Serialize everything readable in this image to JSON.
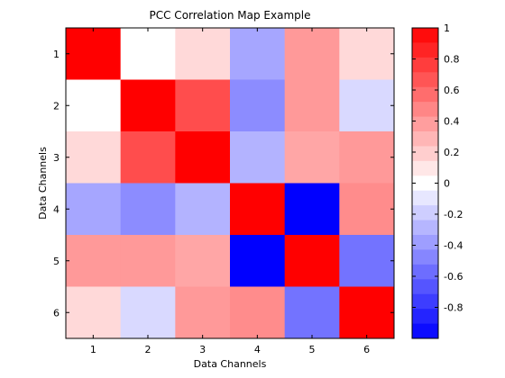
{
  "chart_data": {
    "type": "heatmap",
    "title": "PCC Correlation Map Example",
    "xlabel": "Data Channels",
    "ylabel": "Data Channels",
    "x_categories": [
      "1",
      "2",
      "3",
      "4",
      "5",
      "6"
    ],
    "y_categories": [
      "1",
      "2",
      "3",
      "4",
      "5",
      "6"
    ],
    "values": [
      [
        1.0,
        0.0,
        0.15,
        -0.35,
        0.4,
        0.15
      ],
      [
        0.0,
        1.0,
        0.7,
        -0.45,
        0.4,
        -0.15
      ],
      [
        0.15,
        0.7,
        1.0,
        -0.3,
        0.35,
        0.4
      ],
      [
        -0.35,
        -0.45,
        -0.3,
        1.0,
        -1.0,
        0.45
      ],
      [
        0.4,
        0.4,
        0.35,
        -1.0,
        1.0,
        -0.55
      ],
      [
        0.15,
        -0.15,
        0.4,
        0.45,
        -0.55,
        1.0
      ]
    ],
    "colormap": [
      "#0000ff",
      "#ffffff",
      "#ff0000"
    ],
    "color_range": [
      -1,
      1
    ],
    "colorbar_ticks": [
      1,
      0.8,
      0.6,
      0.4,
      0.2,
      0,
      -0.2,
      -0.4,
      -0.6,
      -0.8
    ],
    "colorbar_tick_labels": [
      "1",
      "0.8",
      "0.6",
      "0.4",
      "0.2",
      "0",
      "-0.2",
      "-0.4",
      "-0.6",
      "-0.8"
    ],
    "colorbar_steps": 21,
    "colorbar_placement": "right",
    "grid": false
  }
}
